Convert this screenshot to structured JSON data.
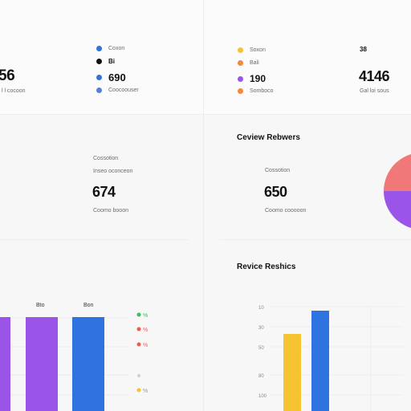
{
  "colors": {
    "blue": "#2f73e0",
    "black": "#111111",
    "purple": "#9a55e8",
    "yellow": "#f5c430",
    "orange": "#f4893a",
    "red": "#ef5a58",
    "green": "#41b960",
    "coral": "#f07878"
  },
  "top_left": {
    "stat_value": "56",
    "stat_caption": "l l cocoon",
    "legend": [
      {
        "label": "Coxon",
        "color": "blue",
        "icon": "circle-icon"
      },
      {
        "label": "Bi",
        "color": "black",
        "icon": "circle-icon"
      },
      {
        "label": "690",
        "color": "blue",
        "icon": "circle-icon"
      },
      {
        "label": "Coocoouser",
        "color": "blue",
        "icon": "circle-icon"
      }
    ]
  },
  "top_right": {
    "legend": [
      {
        "label": "Soxon",
        "color": "yellow",
        "icon": "circle-icon"
      },
      {
        "label": "Bali",
        "color": "orange",
        "icon": "circle-icon"
      },
      {
        "label": "190",
        "color": "purple",
        "icon": "circle-icon"
      },
      {
        "label": "Somboco",
        "color": "orange",
        "icon": "circle-icon"
      }
    ],
    "stat_small": "38",
    "stat_value": "4146",
    "stat_caption": "Gal loi sous"
  },
  "mid_left": {
    "label_top": "Cossotion",
    "label_mid": "Inseo oconceon",
    "value": "674",
    "caption": "Coomo booon"
  },
  "mid_right": {
    "heading": "Ceview Rebwers",
    "label_top": "Cossotion",
    "value": "650",
    "caption": "Coomo cooooon",
    "pie": {
      "type": "pie",
      "slices": [
        {
          "label": "",
          "color": "red"
        },
        {
          "label": "",
          "color": "purple"
        }
      ]
    }
  },
  "bottom_left": {
    "bar_labels": [
      "Bto",
      "Bon"
    ],
    "legend": [
      {
        "label": "%",
        "color": "green"
      },
      {
        "label": "%",
        "color": "red"
      },
      {
        "label": "%",
        "color": "red"
      },
      {
        "label": "%",
        "color": "yellow"
      }
    ]
  },
  "bottom_right": {
    "heading": "Revice Reshics",
    "y_ticks": [
      "10",
      "30",
      "50",
      "80",
      "100"
    ]
  },
  "chart_data": [
    {
      "type": "bar",
      "categories": [
        "",
        "Bto",
        "Bon"
      ],
      "values": [
        92,
        92,
        92
      ],
      "colors": [
        "purple",
        "purple",
        "blue"
      ],
      "ylim": [
        0,
        100
      ]
    },
    {
      "type": "bar",
      "categories": [
        "",
        ""
      ],
      "values": [
        75,
        100
      ],
      "colors": [
        "yellow",
        "blue"
      ],
      "ylim": [
        0,
        100
      ]
    }
  ]
}
